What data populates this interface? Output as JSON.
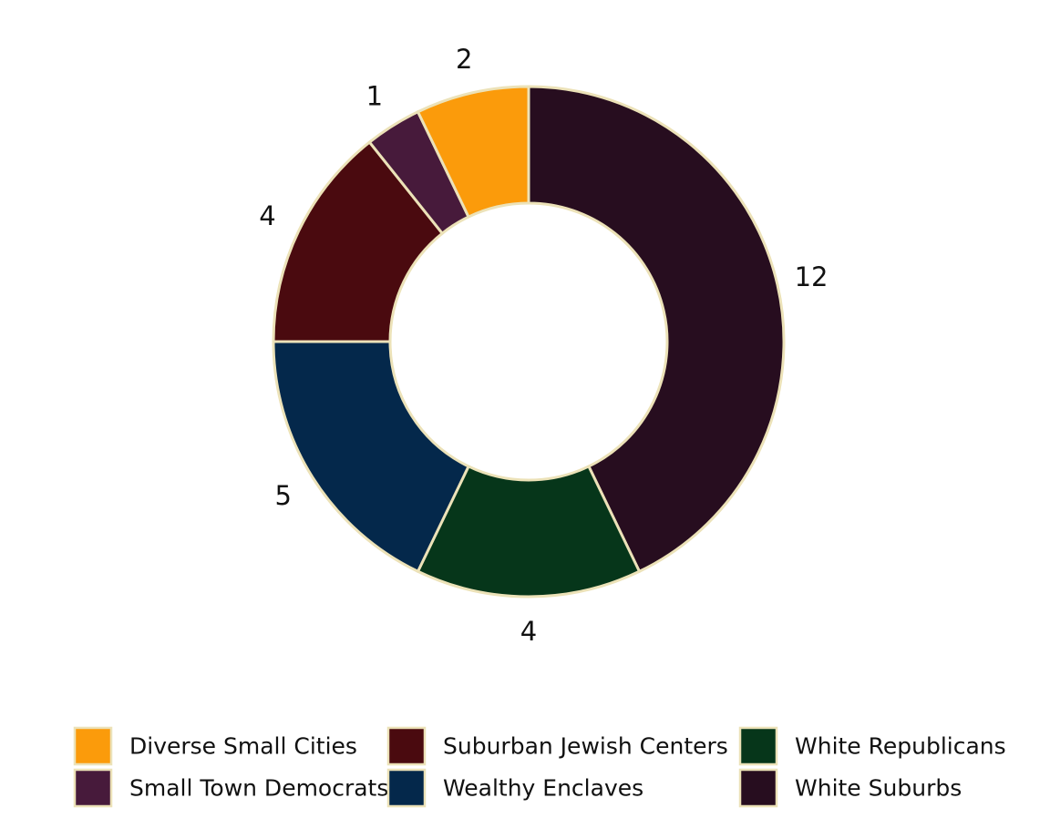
{
  "chart_data": {
    "type": "pie",
    "donut": true,
    "slices": [
      {
        "label": "White Suburbs",
        "value": 12,
        "display": "12",
        "color": "#270d1f"
      },
      {
        "label": "White Republicans",
        "value": 4,
        "display": "4",
        "color": "#06361a"
      },
      {
        "label": "Wealthy Enclaves",
        "value": 5,
        "display": "5",
        "color": "#04284b"
      },
      {
        "label": "Suburban Jewish Centers",
        "value": 4,
        "display": "4",
        "color": "#4a0a0f"
      },
      {
        "label": "Small Town Democrats",
        "value": 1,
        "display": "1",
        "color": "#471a3b"
      },
      {
        "label": "Diverse Small Cities",
        "value": 2,
        "display": "2",
        "color": "#fb9b0b"
      }
    ],
    "legend": {
      "placement": "bottom",
      "items": [
        {
          "label": "Diverse Small Cities",
          "color": "#fb9b0b"
        },
        {
          "label": "Small Town Democrats",
          "color": "#471a3b"
        },
        {
          "label": "Suburban Jewish Centers",
          "color": "#4a0a0f"
        },
        {
          "label": "Wealthy Enclaves",
          "color": "#04284b"
        },
        {
          "label": "White Republicans",
          "color": "#06361a"
        },
        {
          "label": "White Suburbs",
          "color": "#270d1f"
        }
      ]
    },
    "slice_border_color": "#ece2b8"
  }
}
